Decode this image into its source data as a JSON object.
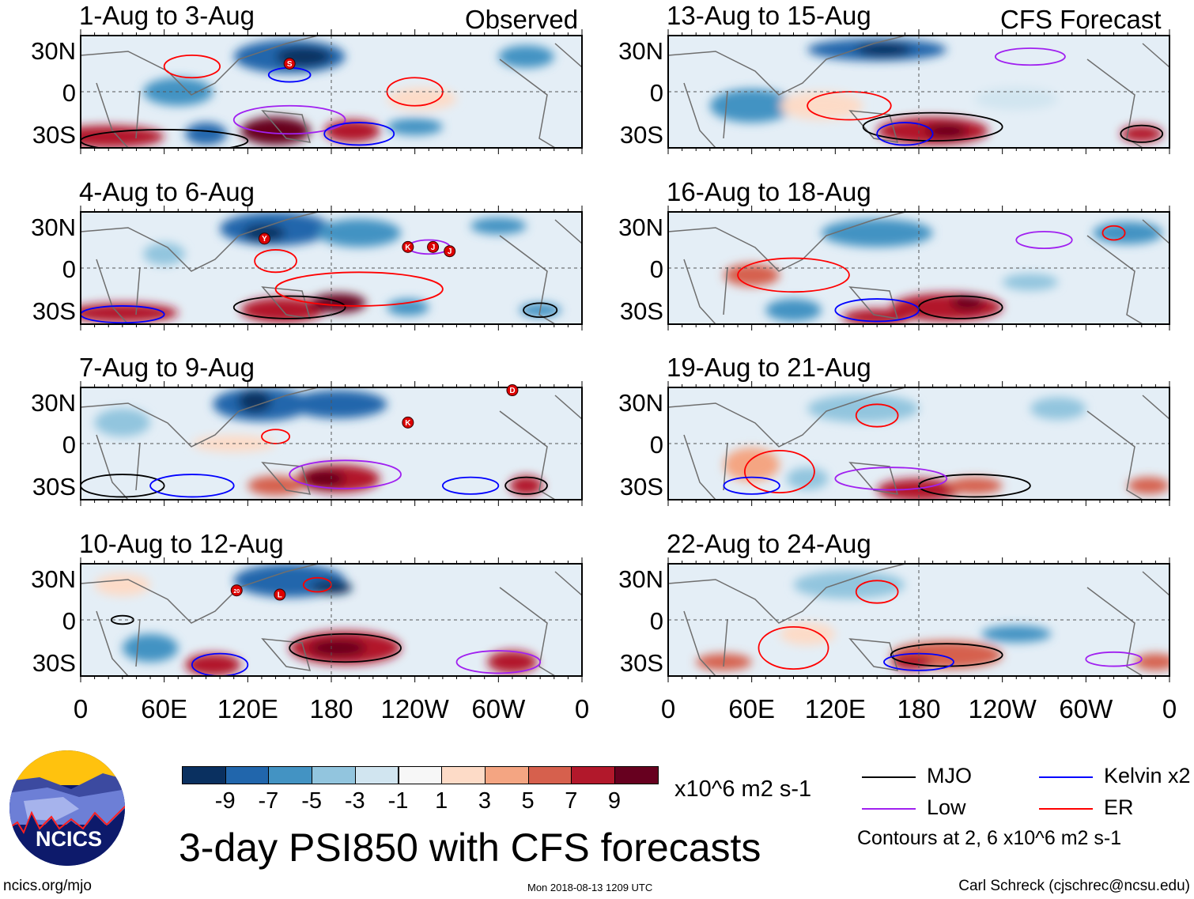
{
  "headers": {
    "observed": "Observed",
    "forecast": "CFS Forecast"
  },
  "panels": [
    {
      "title": "1-Aug to 3-Aug",
      "group": "observed",
      "storms": [
        {
          "label": "S",
          "lon": 150,
          "lat": 20
        }
      ]
    },
    {
      "title": "4-Aug to 6-Aug",
      "group": "observed",
      "storms": [
        {
          "label": "Y",
          "lon": 132,
          "lat": 21
        },
        {
          "label": "K",
          "lon": 235,
          "lat": 15
        },
        {
          "label": "J",
          "lon": 253,
          "lat": 15
        },
        {
          "label": "J",
          "lon": 265,
          "lat": 12
        }
      ]
    },
    {
      "title": "7-Aug to 9-Aug",
      "group": "observed",
      "storms": [
        {
          "label": "K",
          "lon": 235,
          "lat": 15
        },
        {
          "label": "D",
          "lon": 310,
          "lat": 38
        }
      ]
    },
    {
      "title": "10-Aug to 12-Aug",
      "group": "observed",
      "storms": [
        {
          "label": "20",
          "lon": 112,
          "lat": 21
        },
        {
          "label": "L",
          "lon": 143,
          "lat": 18
        }
      ]
    },
    {
      "title": "13-Aug to 15-Aug",
      "group": "forecast",
      "storms": []
    },
    {
      "title": "16-Aug to 18-Aug",
      "group": "forecast",
      "storms": []
    },
    {
      "title": "19-Aug to 21-Aug",
      "group": "forecast",
      "storms": []
    },
    {
      "title": "22-Aug to 24-Aug",
      "group": "forecast",
      "storms": []
    }
  ],
  "yaxis": [
    "30N",
    "0",
    "30S"
  ],
  "xaxis": [
    "0",
    "60E",
    "120E",
    "180",
    "120W",
    "60W",
    "0"
  ],
  "colorbar": {
    "colors": [
      "#0a3060",
      "#2166ac",
      "#4393c3",
      "#92c5de",
      "#d1e5f0",
      "#f7f7f7",
      "#fddbc7",
      "#f4a582",
      "#d6604d",
      "#b2182b",
      "#67001f"
    ],
    "labels": [
      "-9",
      "-7",
      "-5",
      "-3",
      "-1",
      "1",
      "3",
      "5",
      "7",
      "9"
    ],
    "units": "x10^6 m2 s-1"
  },
  "legend": [
    {
      "label": "MJO",
      "color": "#000000"
    },
    {
      "label": "Kelvin x2",
      "color": "#0000ff"
    },
    {
      "label": "Low",
      "color": "#a020f0"
    },
    {
      "label": "ER",
      "color": "#ff0000"
    }
  ],
  "contour_note": "Contours at 2, 6 x10^6 m2 s-1",
  "title": "3-day PSI850 with CFS forecasts",
  "logo_text": "NCICS",
  "footer": {
    "url": "ncics.org/mjo",
    "timestamp": "Mon 2018-08-13 1209 UTC",
    "author": "Carl Schreck (cjschrec@ncsu.edu)"
  }
}
